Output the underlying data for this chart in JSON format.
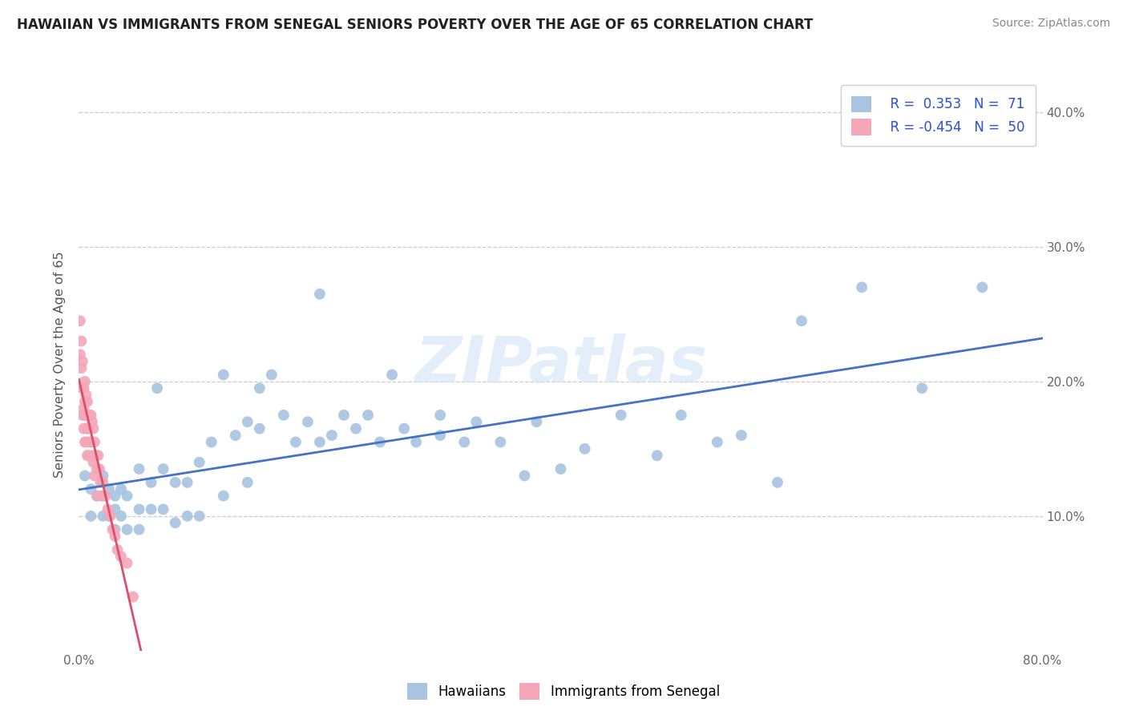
{
  "title": "HAWAIIAN VS IMMIGRANTS FROM SENEGAL SENIORS POVERTY OVER THE AGE OF 65 CORRELATION CHART",
  "source": "Source: ZipAtlas.com",
  "ylabel": "Seniors Poverty Over the Age of 65",
  "xlim": [
    0.0,
    0.8
  ],
  "ylim": [
    0.0,
    0.425
  ],
  "r_hawaiian": 0.353,
  "n_hawaiian": 71,
  "r_senegal": -0.454,
  "n_senegal": 50,
  "hawaiian_color": "#a8c4e0",
  "senegal_color": "#f4a7b9",
  "hawaiian_line_color": "#4472c4",
  "senegal_line_color": "#d94f70",
  "legend_labels_bottom": [
    "Hawaiians",
    "Immigrants from Senegal"
  ],
  "watermark": "ZIPatlas",
  "hawaiian_x": [
    0.005,
    0.01,
    0.01,
    0.015,
    0.02,
    0.02,
    0.02,
    0.025,
    0.025,
    0.03,
    0.03,
    0.03,
    0.035,
    0.035,
    0.04,
    0.04,
    0.05,
    0.05,
    0.05,
    0.06,
    0.06,
    0.065,
    0.07,
    0.07,
    0.08,
    0.08,
    0.09,
    0.09,
    0.1,
    0.1,
    0.11,
    0.12,
    0.12,
    0.13,
    0.14,
    0.14,
    0.15,
    0.15,
    0.16,
    0.17,
    0.18,
    0.19,
    0.2,
    0.2,
    0.21,
    0.22,
    0.23,
    0.24,
    0.25,
    0.26,
    0.27,
    0.28,
    0.3,
    0.3,
    0.32,
    0.33,
    0.35,
    0.37,
    0.38,
    0.4,
    0.42,
    0.45,
    0.48,
    0.5,
    0.53,
    0.55,
    0.58,
    0.6,
    0.65,
    0.7,
    0.75
  ],
  "hawaiian_y": [
    0.13,
    0.12,
    0.1,
    0.115,
    0.13,
    0.115,
    0.1,
    0.12,
    0.1,
    0.115,
    0.105,
    0.09,
    0.12,
    0.1,
    0.115,
    0.09,
    0.135,
    0.105,
    0.09,
    0.125,
    0.105,
    0.195,
    0.135,
    0.105,
    0.125,
    0.095,
    0.125,
    0.1,
    0.14,
    0.1,
    0.155,
    0.205,
    0.115,
    0.16,
    0.17,
    0.125,
    0.195,
    0.165,
    0.205,
    0.175,
    0.155,
    0.17,
    0.265,
    0.155,
    0.16,
    0.175,
    0.165,
    0.175,
    0.155,
    0.205,
    0.165,
    0.155,
    0.16,
    0.175,
    0.155,
    0.17,
    0.155,
    0.13,
    0.17,
    0.135,
    0.15,
    0.175,
    0.145,
    0.175,
    0.155,
    0.16,
    0.125,
    0.245,
    0.27,
    0.195,
    0.27
  ],
  "senegal_x": [
    0.001,
    0.001,
    0.002,
    0.002,
    0.003,
    0.003,
    0.003,
    0.004,
    0.004,
    0.004,
    0.005,
    0.005,
    0.005,
    0.005,
    0.006,
    0.006,
    0.006,
    0.007,
    0.007,
    0.007,
    0.008,
    0.008,
    0.008,
    0.009,
    0.009,
    0.01,
    0.01,
    0.011,
    0.011,
    0.012,
    0.012,
    0.013,
    0.013,
    0.014,
    0.015,
    0.015,
    0.016,
    0.017,
    0.018,
    0.019,
    0.02,
    0.022,
    0.024,
    0.026,
    0.028,
    0.03,
    0.032,
    0.035,
    0.04,
    0.045
  ],
  "senegal_y": [
    0.245,
    0.22,
    0.23,
    0.21,
    0.215,
    0.195,
    0.175,
    0.195,
    0.18,
    0.165,
    0.2,
    0.185,
    0.175,
    0.155,
    0.19,
    0.175,
    0.155,
    0.185,
    0.165,
    0.145,
    0.175,
    0.165,
    0.145,
    0.175,
    0.155,
    0.175,
    0.155,
    0.17,
    0.145,
    0.165,
    0.14,
    0.155,
    0.13,
    0.145,
    0.135,
    0.115,
    0.145,
    0.135,
    0.125,
    0.115,
    0.125,
    0.115,
    0.105,
    0.1,
    0.09,
    0.085,
    0.075,
    0.07,
    0.065,
    0.04
  ]
}
